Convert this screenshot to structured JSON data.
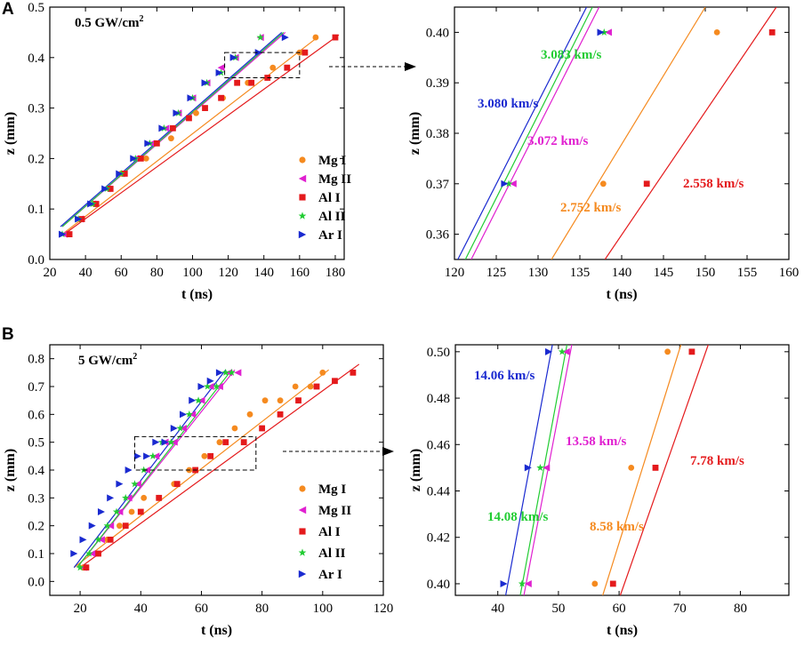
{
  "panel_labels": {
    "a": "A",
    "b": "B"
  },
  "colors": {
    "Mg I": "#f58a1f",
    "Mg II": "#e020d0",
    "Al I": "#e41a1c",
    "Al II": "#22cc33",
    "Ar I": "#1a2ad0",
    "axis": "#000000"
  },
  "chart_data": [
    {
      "id": "A-main",
      "type": "scatter",
      "annotation": "0.5 GW/cm²",
      "xlabel": "t (ns)",
      "ylabel": "z (mm)",
      "xlim": [
        20,
        185
      ],
      "ylim": [
        0,
        0.5
      ],
      "xticks": [
        "20",
        "40",
        "60",
        "80",
        "100",
        "120",
        "140",
        "160",
        "180"
      ],
      "yticks": [
        "0.0",
        "0.1",
        "0.2",
        "0.3",
        "0.4",
        "0.5"
      ],
      "legend": {
        "placement": "bottom-right",
        "entries": [
          "Mg I",
          "Mg II",
          "Al I",
          "Al II",
          "Ar I"
        ]
      },
      "series": [
        {
          "name": "Mg I",
          "marker": "circle",
          "x": [
            30,
            45,
            60,
            74,
            88,
            102,
            117,
            131,
            145,
            160,
            169
          ],
          "y": [
            0.05,
            0.11,
            0.17,
            0.2,
            0.24,
            0.29,
            0.32,
            0.35,
            0.38,
            0.41,
            0.44
          ],
          "fit": [
            [
              27,
              0.05
            ],
            [
              170,
              0.44
            ]
          ]
        },
        {
          "name": "Mg II",
          "marker": "tri-left",
          "x": [
            28,
            37,
            44,
            52,
            60,
            68,
            77,
            85,
            92,
            100,
            108,
            116,
            124,
            138
          ],
          "y": [
            0.05,
            0.08,
            0.11,
            0.14,
            0.17,
            0.2,
            0.23,
            0.26,
            0.29,
            0.32,
            0.35,
            0.38,
            0.4,
            0.44
          ],
          "fit": [
            [
              27,
              0.065
            ],
            [
              152,
              0.45
            ]
          ]
        },
        {
          "name": "Al I",
          "marker": "square",
          "x": [
            31,
            38,
            46,
            54,
            62,
            71,
            80,
            89,
            98,
            107,
            116,
            125,
            133,
            142,
            153,
            163,
            180
          ],
          "y": [
            0.05,
            0.08,
            0.11,
            0.14,
            0.17,
            0.2,
            0.23,
            0.26,
            0.28,
            0.3,
            0.32,
            0.35,
            0.35,
            0.36,
            0.38,
            0.41,
            0.44
          ],
          "fit": [
            [
              28,
              0.05
            ],
            [
              182,
              0.445
            ]
          ]
        },
        {
          "name": "Al II",
          "marker": "star",
          "x": [
            27,
            36,
            44,
            52,
            60,
            68,
            76,
            84,
            92,
            100,
            108,
            116,
            124,
            138
          ],
          "y": [
            0.05,
            0.08,
            0.11,
            0.14,
            0.17,
            0.2,
            0.23,
            0.26,
            0.29,
            0.32,
            0.35,
            0.37,
            0.4,
            0.44
          ],
          "fit": [
            [
              27,
              0.065
            ],
            [
              151,
              0.45
            ]
          ]
        },
        {
          "name": "Ar I",
          "marker": "tri-right",
          "x": [
            27,
            36,
            43,
            51,
            59,
            67,
            75,
            83,
            91,
            99,
            107,
            115,
            123,
            137,
            152
          ],
          "y": [
            0.05,
            0.08,
            0.11,
            0.14,
            0.17,
            0.2,
            0.23,
            0.26,
            0.29,
            0.32,
            0.35,
            0.37,
            0.4,
            0.41,
            0.44
          ],
          "fit": [
            [
              26,
              0.065
            ],
            [
              150,
              0.45
            ]
          ]
        }
      ],
      "zoom_box": {
        "x": [
          118,
          160
        ],
        "y": [
          0.36,
          0.41
        ]
      }
    },
    {
      "id": "A-zoom",
      "type": "scatter",
      "xlabel": "t (ns)",
      "ylabel": "z (mm)",
      "xlim": [
        120,
        160
      ],
      "ylim": [
        0.355,
        0.405
      ],
      "xticks": [
        "120",
        "125",
        "130",
        "135",
        "140",
        "145",
        "150",
        "155",
        "160"
      ],
      "yticks": [
        "0.36",
        "0.37",
        "0.38",
        "0.39",
        "0.40"
      ],
      "series": [
        {
          "name": "Mg I",
          "marker": "circle",
          "x": [
            137.8,
            151.4
          ],
          "y": [
            0.37,
            0.4
          ],
          "fit": [
            [
              131.6,
              0.355
            ],
            [
              150,
              0.405
            ]
          ],
          "velocity": "2.752 km/s"
        },
        {
          "name": "Mg II",
          "marker": "tri-left",
          "x": [
            127,
            138.4
          ],
          "y": [
            0.37,
            0.4
          ],
          "fit": [
            [
              122,
              0.355
            ],
            [
              137.3,
              0.405
            ]
          ],
          "velocity": "3.072 km/s"
        },
        {
          "name": "Al I",
          "marker": "square",
          "x": [
            143,
            158
          ],
          "y": [
            0.37,
            0.4
          ],
          "fit": [
            [
              138,
              0.355
            ],
            [
              158.5,
              0.405
            ]
          ],
          "velocity": "2.558 km/s"
        },
        {
          "name": "Al II",
          "marker": "star",
          "x": [
            126.5,
            137.9
          ],
          "y": [
            0.37,
            0.4
          ],
          "fit": [
            [
              121.3,
              0.355
            ],
            [
              136.5,
              0.405
            ]
          ],
          "velocity": "3.083 km/s"
        },
        {
          "name": "Ar I",
          "marker": "tri-right",
          "x": [
            126,
            137.5
          ],
          "y": [
            0.37,
            0.4
          ],
          "fit": [
            [
              120.4,
              0.355
            ],
            [
              135.8,
              0.405
            ]
          ],
          "velocity": "3.080 km/s"
        }
      ]
    },
    {
      "id": "B-main",
      "type": "scatter",
      "annotation": "5 GW/cm²",
      "xlabel": "t (ns)",
      "ylabel": "z (mm)",
      "xlim": [
        10,
        120
      ],
      "ylim": [
        -0.05,
        0.85
      ],
      "xticks": [
        "20",
        "40",
        "60",
        "80",
        "100",
        "120"
      ],
      "yticks": [
        "0.0",
        "0.1",
        "0.2",
        "0.3",
        "0.4",
        "0.5",
        "0.6",
        "0.7",
        "0.8"
      ],
      "legend": {
        "placement": "bottom-right",
        "entries": [
          "Mg I",
          "Mg II",
          "Al I",
          "Al II",
          "Ar I"
        ]
      },
      "series": [
        {
          "name": "Mg I",
          "marker": "circle",
          "x": [
            21,
            25,
            29,
            33,
            37,
            41,
            46,
            51,
            56,
            61,
            66,
            71,
            76,
            81,
            86,
            91,
            96,
            100
          ],
          "y": [
            0.05,
            0.1,
            0.15,
            0.2,
            0.25,
            0.3,
            0.3,
            0.35,
            0.4,
            0.45,
            0.5,
            0.55,
            0.6,
            0.65,
            0.65,
            0.7,
            0.7,
            0.75
          ],
          "fit": [
            [
              18,
              0.05
            ],
            [
              102,
              0.76
            ]
          ]
        },
        {
          "name": "Mg II",
          "marker": "tri-left",
          "x": [
            21,
            24,
            27,
            30,
            33,
            36,
            39,
            42,
            45,
            48,
            51,
            54,
            57,
            60,
            63,
            66,
            69,
            72
          ],
          "y": [
            0.05,
            0.1,
            0.15,
            0.2,
            0.25,
            0.3,
            0.35,
            0.4,
            0.45,
            0.5,
            0.5,
            0.55,
            0.6,
            0.65,
            0.7,
            0.7,
            0.75,
            0.75
          ],
          "fit": [
            [
              19,
              0.05
            ],
            [
              71,
              0.76
            ]
          ]
        },
        {
          "name": "Al I",
          "marker": "square",
          "x": [
            22,
            26,
            30,
            35,
            40,
            46,
            52,
            58,
            63,
            68,
            74,
            80,
            86,
            92,
            98,
            104,
            110
          ],
          "y": [
            0.05,
            0.1,
            0.15,
            0.2,
            0.25,
            0.3,
            0.35,
            0.4,
            0.45,
            0.5,
            0.5,
            0.55,
            0.6,
            0.65,
            0.7,
            0.72,
            0.75
          ],
          "fit": [
            [
              20,
              0.05
            ],
            [
              112,
              0.78
            ]
          ]
        },
        {
          "name": "Al II",
          "marker": "star",
          "x": [
            20,
            23,
            26,
            29,
            32,
            35,
            38,
            41,
            44,
            47,
            50,
            53,
            56,
            59,
            62,
            65,
            68,
            70
          ],
          "y": [
            0.05,
            0.1,
            0.15,
            0.2,
            0.25,
            0.3,
            0.35,
            0.4,
            0.45,
            0.5,
            0.5,
            0.55,
            0.6,
            0.65,
            0.7,
            0.7,
            0.75,
            0.75
          ],
          "fit": [
            [
              19,
              0.05
            ],
            [
              70,
              0.76
            ]
          ]
        },
        {
          "name": "Ar I",
          "marker": "tri-right",
          "x": [
            18,
            21,
            24,
            27,
            30,
            33,
            36,
            39,
            42,
            45,
            48,
            51,
            54,
            57,
            60,
            63,
            66
          ],
          "y": [
            0.1,
            0.15,
            0.2,
            0.25,
            0.3,
            0.35,
            0.4,
            0.45,
            0.45,
            0.5,
            0.5,
            0.55,
            0.6,
            0.65,
            0.7,
            0.72,
            0.75
          ],
          "fit": [
            [
              18,
              0.05
            ],
            [
              68,
              0.76
            ]
          ]
        }
      ],
      "zoom_box": {
        "x": [
          38,
          78
        ],
        "y": [
          0.4,
          0.52
        ]
      }
    },
    {
      "id": "B-zoom",
      "type": "scatter",
      "xlabel": "t (ns)",
      "ylabel": "z (mm)",
      "xlim": [
        33,
        88
      ],
      "ylim": [
        0.395,
        0.503
      ],
      "xticks": [
        "40",
        "50",
        "60",
        "70",
        "80"
      ],
      "yticks": [
        "0.40",
        "0.42",
        "0.44",
        "0.46",
        "0.48",
        "0.50"
      ],
      "series": [
        {
          "name": "Mg I",
          "marker": "circle",
          "x": [
            56,
            62,
            68
          ],
          "y": [
            0.4,
            0.45,
            0.5
          ],
          "fit": [
            [
              57.3,
              0.395
            ],
            [
              70.2,
              0.503
            ]
          ],
          "velocity": "8.58 km/s"
        },
        {
          "name": "Mg II",
          "marker": "tri-left",
          "x": [
            45,
            48,
            51.3
          ],
          "y": [
            0.4,
            0.45,
            0.5
          ],
          "fit": [
            [
              44.3,
              0.395
            ],
            [
              52.2,
              0.503
            ]
          ],
          "velocity": "13.58 km/s"
        },
        {
          "name": "Al I",
          "marker": "square",
          "x": [
            59,
            66,
            72
          ],
          "y": [
            0.4,
            0.45,
            0.5
          ],
          "fit": [
            [
              60.2,
              0.395
            ],
            [
              74.7,
              0.503
            ]
          ],
          "velocity": "7.78 km/s"
        },
        {
          "name": "Al II",
          "marker": "star",
          "x": [
            44,
            47,
            50.6
          ],
          "y": [
            0.4,
            0.45,
            0.5
          ],
          "fit": [
            [
              43.7,
              0.395
            ],
            [
              51.4,
              0.503
            ]
          ],
          "velocity": "14.08 km/s"
        },
        {
          "name": "Ar I",
          "marker": "tri-right",
          "x": [
            41,
            45,
            48.4
          ],
          "y": [
            0.4,
            0.45,
            0.5
          ],
          "fit": [
            [
              41.3,
              0.395
            ],
            [
              49,
              0.503
            ]
          ],
          "velocity": "14.06 km/s"
        }
      ]
    }
  ]
}
